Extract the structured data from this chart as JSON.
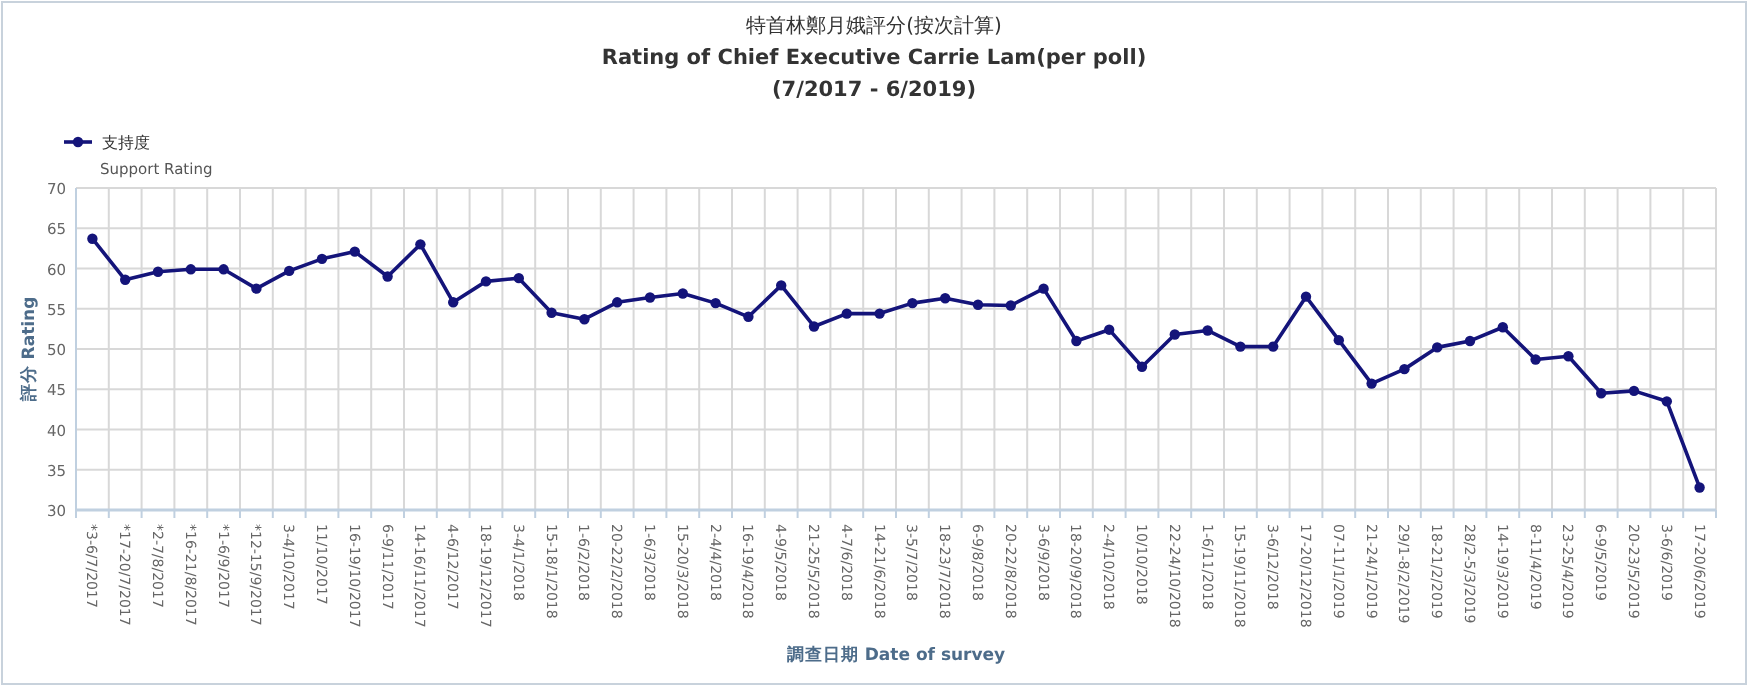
{
  "chart_data": {
    "type": "line",
    "title": "特首林鄭月娥評分(按次計算)\nRating of Chief Executive Carrie Lam(per poll)",
    "subtitle": "(7/2017 - 6/2019)",
    "xlabel": "調查日期 Date of survey",
    "ylabel": "評分 Rating",
    "categories": [
      "*3-6/7/2017",
      "*17-20/7/2017",
      "*2-7/8/2017",
      "*16-21/8/2017",
      "*1-6/9/2017",
      "*12-15/9/2017",
      "3-4/10/2017",
      "11/10/2017",
      "16-19/10/2017",
      "6-9/11/2017",
      "14-16/11/2017",
      "4-6/12/2017",
      "18-19/12/2017",
      "3-4/1/2018",
      "15-18/1/2018",
      "1-6/2/2018",
      "20-22/2/2018",
      "1-6/3/2018",
      "15-20/3/2018",
      "2-4/4/2018",
      "16-19/4/2018",
      "4-9/5/2018",
      "21-25/5/2018",
      "4-7/6/2018",
      "14-21/6/2018",
      "3-5/7/2018",
      "18-23/7/2018",
      "6-9/8/2018",
      "20-22/8/2018",
      "3-6/9/2018",
      "18-20/9/2018",
      "2-4/10/2018",
      "10/10/2018",
      "22-24/10/2018",
      "1-6/11/2018",
      "15-19/11/2018",
      "3-6/12/2018",
      "17-20/12/2018",
      "07-11/1/2019",
      "21-24/1/2019",
      "29/1-8/2/2019",
      "18-21/2/2019",
      "28/2-5/3/2019",
      "14-19/3/2019",
      "8-11/4/2019",
      "23-25/4/2019",
      "6-9/5/2019",
      "20-23/5/2019",
      "3-6/6/2019",
      "17-20/6/2019"
    ],
    "series": [
      {
        "name": "支持度\nSupport Rating",
        "color": "#14147a",
        "values": [
          63.7,
          58.6,
          59.6,
          59.9,
          59.9,
          57.5,
          59.7,
          61.2,
          62.1,
          59.0,
          63.0,
          55.8,
          58.4,
          58.8,
          54.5,
          53.7,
          55.8,
          56.4,
          56.9,
          55.7,
          54.0,
          57.9,
          52.8,
          54.4,
          54.4,
          55.7,
          56.3,
          55.5,
          55.4,
          57.5,
          51.0,
          52.4,
          47.8,
          51.8,
          52.3,
          50.3,
          50.3,
          56.5,
          51.1,
          45.7,
          47.5,
          50.2,
          51.0,
          52.7,
          48.7,
          49.1,
          44.5,
          44.8,
          43.5,
          32.8
        ]
      }
    ],
    "ylim": [
      30,
      70
    ],
    "yticks": [
      30,
      35,
      40,
      45,
      50,
      55,
      60,
      65,
      70
    ],
    "grid": true,
    "legend": "top left",
    "marker": "circle",
    "line_style": "solid"
  }
}
